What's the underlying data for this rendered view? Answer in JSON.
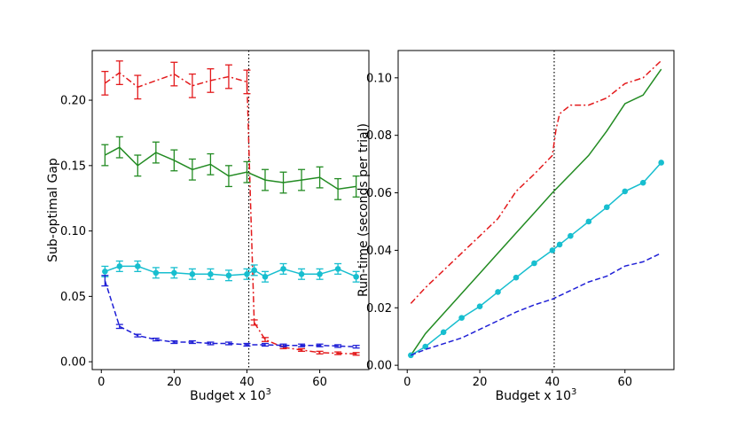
{
  "chart_data": [
    {
      "type": "line",
      "title": "",
      "xlabel": "Budget x 10",
      "xlabel_sup": "3",
      "ylabel": "Sub-optimal Gap",
      "xlim": [
        -2.5,
        73.5
      ],
      "ylim": [
        -0.006,
        0.238
      ],
      "xticks": [
        0,
        20,
        40,
        60
      ],
      "xtick_labels": [
        "0",
        "20",
        "40",
        "60"
      ],
      "yticks": [
        0.0,
        0.05,
        0.1,
        0.15,
        0.2
      ],
      "ytick_labels": [
        "0.00",
        "0.05",
        "0.10",
        "0.15",
        "0.20"
      ],
      "vline_x": 40.5,
      "series": [
        {
          "name": "red",
          "color": "#e31a1c",
          "style": "dashdot",
          "x": [
            1,
            5,
            10,
            20,
            25,
            30,
            35,
            40,
            41,
            42,
            45,
            50,
            55,
            60,
            65,
            70
          ],
          "y": [
            0.213,
            0.221,
            0.21,
            0.22,
            0.211,
            0.215,
            0.218,
            0.214,
            0.12,
            0.03,
            0.017,
            0.011,
            0.009,
            0.007,
            0.0065,
            0.006
          ],
          "err": [
            0.009,
            0.009,
            0.009,
            0.009,
            0.009,
            0.009,
            0.009,
            0.009,
            0,
            0.002,
            0.0015,
            0.001,
            0.001,
            0.001,
            0.001,
            0.001
          ]
        },
        {
          "name": "green",
          "color": "#228b22",
          "style": "solid",
          "x": [
            1,
            5,
            10,
            15,
            20,
            25,
            30,
            35,
            40,
            45,
            50,
            55,
            60,
            65,
            70
          ],
          "y": [
            0.158,
            0.164,
            0.15,
            0.16,
            0.154,
            0.147,
            0.151,
            0.142,
            0.145,
            0.139,
            0.137,
            0.139,
            0.141,
            0.132,
            0.134
          ],
          "err": [
            0.008,
            0.008,
            0.008,
            0.008,
            0.008,
            0.008,
            0.008,
            0.008,
            0.008,
            0.008,
            0.008,
            0.008,
            0.008,
            0.008,
            0.008
          ]
        },
        {
          "name": "cyan",
          "color": "#17becf",
          "style": "solid",
          "marker": "circle",
          "x": [
            1,
            5,
            10,
            15,
            20,
            25,
            30,
            35,
            40,
            42,
            45,
            50,
            55,
            60,
            65,
            70
          ],
          "y": [
            0.069,
            0.073,
            0.073,
            0.068,
            0.068,
            0.067,
            0.067,
            0.066,
            0.067,
            0.07,
            0.065,
            0.071,
            0.067,
            0.067,
            0.071,
            0.065
          ],
          "err": [
            0.004,
            0.004,
            0.004,
            0.004,
            0.004,
            0.004,
            0.004,
            0.004,
            0.004,
            0.004,
            0.004,
            0.004,
            0.004,
            0.004,
            0.004,
            0.004
          ]
        },
        {
          "name": "blue",
          "color": "#1f1fd6",
          "style": "dashed",
          "x": [
            1,
            5,
            10,
            15,
            20,
            25,
            30,
            35,
            40,
            45,
            50,
            55,
            60,
            65,
            70
          ],
          "y": [
            0.062,
            0.027,
            0.02,
            0.017,
            0.015,
            0.015,
            0.014,
            0.014,
            0.013,
            0.013,
            0.0125,
            0.0125,
            0.0125,
            0.012,
            0.0115
          ],
          "err": [
            0.004,
            0.0015,
            0.001,
            0.001,
            0.001,
            0.001,
            0.001,
            0.001,
            0.001,
            0.001,
            0.001,
            0.001,
            0.001,
            0.001,
            0.001
          ]
        }
      ]
    },
    {
      "type": "line",
      "title": "",
      "xlabel": "Budget x 10",
      "xlabel_sup": "3",
      "ylabel": "Run-time (seconds per trial)",
      "xlim": [
        -2.5,
        73.5
      ],
      "ylim": [
        -0.0015,
        0.1095
      ],
      "xticks": [
        0,
        20,
        40,
        60
      ],
      "xtick_labels": [
        "0",
        "20",
        "40",
        "60"
      ],
      "yticks": [
        0.0,
        0.02,
        0.04,
        0.06,
        0.08,
        0.1
      ],
      "ytick_labels": [
        "0.00",
        "0.02",
        "0.04",
        "0.06",
        "0.08",
        "0.10"
      ],
      "vline_x": 40.5,
      "series": [
        {
          "name": "red",
          "color": "#e31a1c",
          "style": "dashdot",
          "x": [
            1,
            5,
            10,
            15,
            20,
            25,
            30,
            35,
            40,
            41,
            42,
            45,
            50,
            55,
            60,
            65,
            70
          ],
          "y": [
            0.0215,
            0.027,
            0.033,
            0.039,
            0.045,
            0.051,
            0.0605,
            0.0665,
            0.073,
            0.082,
            0.0875,
            0.0905,
            0.0905,
            0.093,
            0.098,
            0.1,
            0.106
          ]
        },
        {
          "name": "green",
          "color": "#228b22",
          "style": "solid",
          "x": [
            1,
            5,
            10,
            15,
            20,
            25,
            30,
            35,
            40,
            45,
            50,
            55,
            60,
            65,
            70
          ],
          "y": [
            0.0035,
            0.011,
            0.018,
            0.025,
            0.032,
            0.039,
            0.046,
            0.053,
            0.06,
            0.0665,
            0.073,
            0.0815,
            0.091,
            0.094,
            0.103
          ]
        },
        {
          "name": "cyan",
          "color": "#17becf",
          "style": "solid",
          "marker": "circle",
          "x": [
            1,
            5,
            10,
            15,
            20,
            25,
            30,
            35,
            40,
            42,
            45,
            50,
            55,
            60,
            65,
            70
          ],
          "y": [
            0.0035,
            0.0065,
            0.0115,
            0.0165,
            0.0205,
            0.0255,
            0.0305,
            0.0355,
            0.04,
            0.042,
            0.045,
            0.05,
            0.055,
            0.0605,
            0.0635,
            0.0705
          ]
        },
        {
          "name": "blue",
          "color": "#1f1fd6",
          "style": "dashed",
          "x": [
            1,
            5,
            10,
            15,
            20,
            25,
            30,
            35,
            40,
            45,
            50,
            55,
            60,
            65,
            70
          ],
          "y": [
            0.0035,
            0.0055,
            0.0075,
            0.0095,
            0.0125,
            0.0155,
            0.0185,
            0.021,
            0.023,
            0.026,
            0.029,
            0.031,
            0.0345,
            0.036,
            0.039
          ]
        }
      ]
    }
  ]
}
